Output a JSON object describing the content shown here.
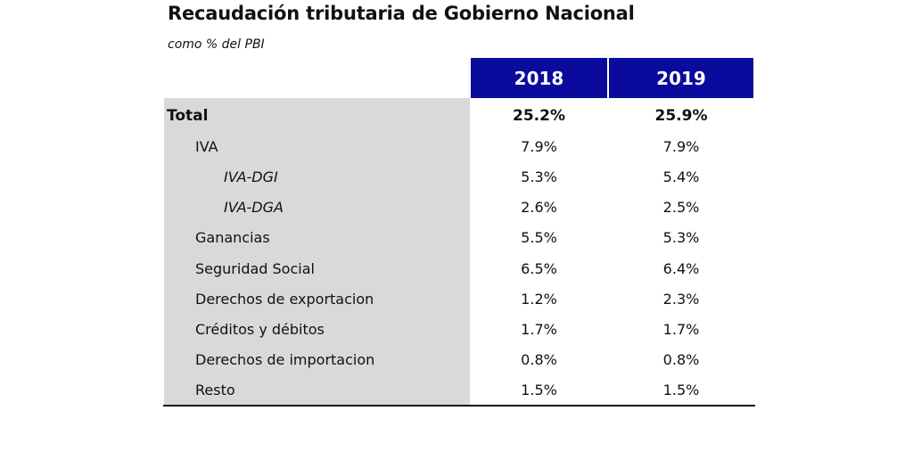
{
  "title": "Recaudación tributaria de Gobierno Nacional",
  "subtitle": "como % del PBI",
  "chart_data": {
    "type": "table",
    "title": "Recaudación tributaria de Gobierno Nacional",
    "subtitle": "como % del PBI",
    "columns": [
      "2018",
      "2019"
    ],
    "rows": [
      {
        "label": "Total",
        "values": [
          "25.2%",
          "25.9%"
        ],
        "level": 0
      },
      {
        "label": "IVA",
        "values": [
          "7.9%",
          "7.9%"
        ],
        "level": 1
      },
      {
        "label": "IVA-DGI",
        "values": [
          "5.3%",
          "5.4%"
        ],
        "level": 2
      },
      {
        "label": "IVA-DGA",
        "values": [
          "2.6%",
          "2.5%"
        ],
        "level": 2
      },
      {
        "label": "Ganancias",
        "values": [
          "5.5%",
          "5.3%"
        ],
        "level": 1
      },
      {
        "label": "Seguridad Social",
        "values": [
          "6.5%",
          "6.4%"
        ],
        "level": 1
      },
      {
        "label": "Derechos de exportacion",
        "values": [
          "1.2%",
          "2.3%"
        ],
        "level": 1
      },
      {
        "label": "Créditos y débitos",
        "values": [
          "1.7%",
          "1.7%"
        ],
        "level": 1
      },
      {
        "label": "Derechos de importacion",
        "values": [
          "0.8%",
          "0.8%"
        ],
        "level": 1
      },
      {
        "label": "Resto",
        "values": [
          "1.5%",
          "1.5%"
        ],
        "level": 1
      }
    ]
  },
  "colors": {
    "header_background": "#0a0a9c",
    "header_text": "#ffffff",
    "label_panel": "#d9d9d9",
    "rule": "#111111"
  }
}
